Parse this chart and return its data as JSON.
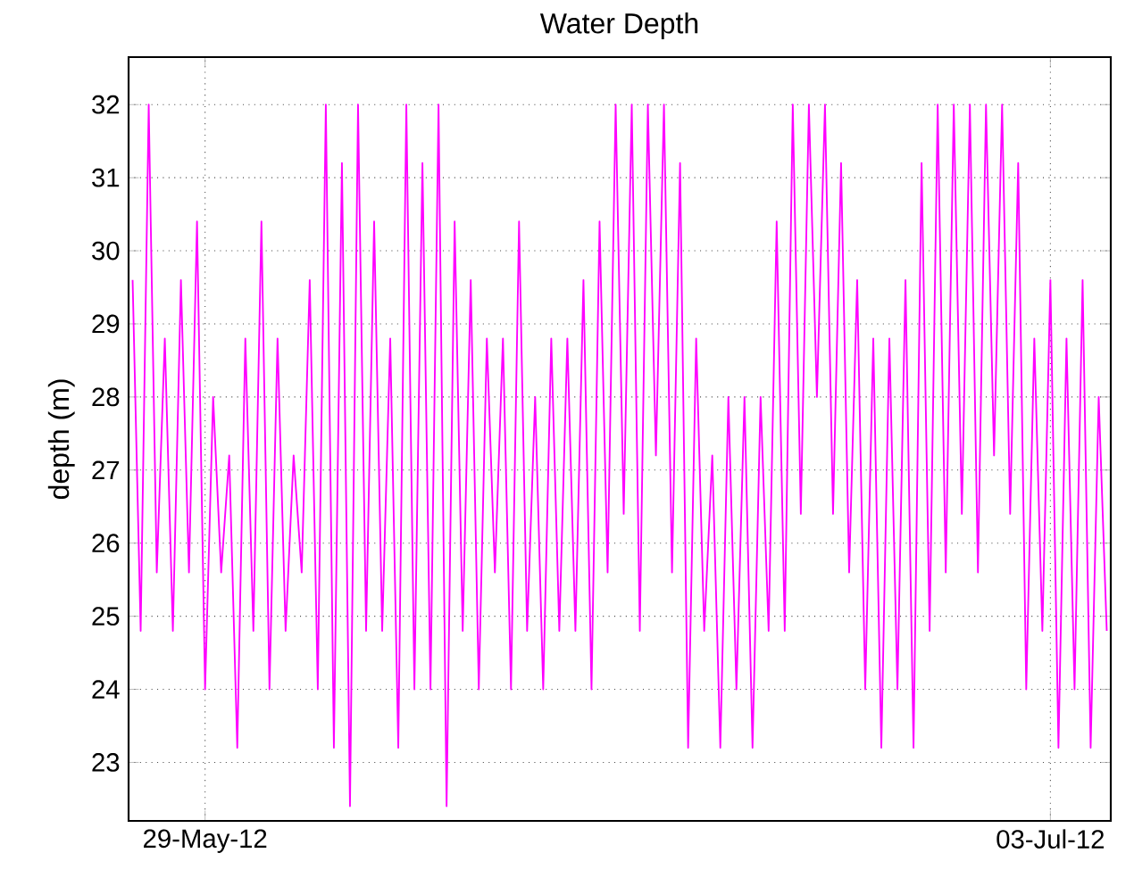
{
  "chart_data": {
    "type": "line",
    "title": "Water Depth",
    "ylabel": "depth (m)",
    "color": "#ff00ff",
    "x": [
      "2012-05-26T00:00",
      "2012-05-26T08:00",
      "2012-05-26T16:00",
      "2012-05-27T00:00",
      "2012-05-27T08:00",
      "2012-05-27T16:00",
      "2012-05-28T00:00",
      "2012-05-28T08:00",
      "2012-05-28T16:00",
      "2012-05-29T00:00",
      "2012-05-29T08:00",
      "2012-05-29T16:00",
      "2012-05-30T00:00",
      "2012-05-30T08:00",
      "2012-05-30T16:00",
      "2012-05-31T00:00",
      "2012-05-31T08:00",
      "2012-05-31T16:00",
      "2012-06-01T00:00",
      "2012-06-01T08:00",
      "2012-06-01T16:00",
      "2012-06-02T00:00",
      "2012-06-02T08:00",
      "2012-06-02T16:00",
      "2012-06-03T00:00",
      "2012-06-03T08:00",
      "2012-06-03T16:00",
      "2012-06-04T00:00",
      "2012-06-04T08:00",
      "2012-06-04T16:00",
      "2012-06-05T00:00",
      "2012-06-05T08:00",
      "2012-06-05T16:00",
      "2012-06-06T00:00",
      "2012-06-06T08:00",
      "2012-06-06T16:00",
      "2012-06-07T00:00",
      "2012-06-07T08:00",
      "2012-06-07T16:00",
      "2012-06-08T00:00",
      "2012-06-08T08:00",
      "2012-06-08T16:00",
      "2012-06-09T00:00",
      "2012-06-09T08:00",
      "2012-06-09T16:00",
      "2012-06-10T00:00",
      "2012-06-10T08:00",
      "2012-06-10T16:00",
      "2012-06-11T00:00",
      "2012-06-11T08:00",
      "2012-06-11T16:00",
      "2012-06-12T00:00",
      "2012-06-12T08:00",
      "2012-06-12T16:00",
      "2012-06-13T00:00",
      "2012-06-13T08:00",
      "2012-06-13T16:00",
      "2012-06-14T00:00",
      "2012-06-14T08:00",
      "2012-06-14T16:00",
      "2012-06-15T00:00",
      "2012-06-15T08:00",
      "2012-06-15T16:00",
      "2012-06-16T00:00",
      "2012-06-16T08:00",
      "2012-06-16T16:00",
      "2012-06-17T00:00",
      "2012-06-17T08:00",
      "2012-06-17T16:00",
      "2012-06-18T00:00",
      "2012-06-18T08:00",
      "2012-06-18T16:00",
      "2012-06-19T00:00",
      "2012-06-19T08:00",
      "2012-06-19T16:00",
      "2012-06-20T00:00",
      "2012-06-20T08:00",
      "2012-06-20T16:00",
      "2012-06-21T00:00",
      "2012-06-21T08:00",
      "2012-06-21T16:00",
      "2012-06-22T00:00",
      "2012-06-22T08:00",
      "2012-06-22T16:00",
      "2012-06-23T00:00",
      "2012-06-23T08:00",
      "2012-06-23T16:00",
      "2012-06-24T00:00",
      "2012-06-24T08:00",
      "2012-06-24T16:00",
      "2012-06-25T00:00",
      "2012-06-25T08:00",
      "2012-06-25T16:00",
      "2012-06-26T00:00",
      "2012-06-26T08:00",
      "2012-06-26T16:00",
      "2012-06-27T00:00",
      "2012-06-27T08:00",
      "2012-06-27T16:00",
      "2012-06-28T00:00",
      "2012-06-28T08:00",
      "2012-06-28T16:00",
      "2012-06-29T00:00",
      "2012-06-29T08:00",
      "2012-06-29T16:00",
      "2012-06-30T00:00",
      "2012-06-30T08:00",
      "2012-06-30T16:00",
      "2012-07-01T00:00",
      "2012-07-01T08:00",
      "2012-07-01T16:00",
      "2012-07-02T00:00",
      "2012-07-02T08:00",
      "2012-07-02T16:00",
      "2012-07-03T00:00",
      "2012-07-03T08:00",
      "2012-07-03T16:00",
      "2012-07-04T00:00",
      "2012-07-04T08:00",
      "2012-07-04T16:00",
      "2012-07-05T00:00",
      "2012-07-05T08:00"
    ],
    "values": [
      29.6,
      24.8,
      32.0,
      25.6,
      28.8,
      24.8,
      29.6,
      25.6,
      30.4,
      24.0,
      28.0,
      25.6,
      27.2,
      23.2,
      28.8,
      24.8,
      30.4,
      24.0,
      28.8,
      24.8,
      27.2,
      25.6,
      29.6,
      24.0,
      32.0,
      23.2,
      31.2,
      22.4,
      32.0,
      24.8,
      30.4,
      24.8,
      28.8,
      23.2,
      32.0,
      24.0,
      31.2,
      24.0,
      32.0,
      22.4,
      30.4,
      24.8,
      29.6,
      24.0,
      28.8,
      25.6,
      28.8,
      24.0,
      30.4,
      24.8,
      28.0,
      24.0,
      28.8,
      24.8,
      28.8,
      24.8,
      29.6,
      24.0,
      30.4,
      25.6,
      32.0,
      26.4,
      32.0,
      24.8,
      32.0,
      27.2,
      32.0,
      25.6,
      31.2,
      23.2,
      28.8,
      24.8,
      27.2,
      23.2,
      28.0,
      24.0,
      28.0,
      23.2,
      28.0,
      24.8,
      30.4,
      24.8,
      32.0,
      26.4,
      32.0,
      28.0,
      32.0,
      26.4,
      31.2,
      25.6,
      29.6,
      24.0,
      28.8,
      23.2,
      28.8,
      24.0,
      29.6,
      23.2,
      31.2,
      24.8,
      32.0,
      25.6,
      32.0,
      26.4,
      32.0,
      25.6,
      32.0,
      27.2,
      32.0,
      26.4,
      31.2,
      24.0,
      28.8,
      24.8,
      29.6,
      23.2,
      28.8,
      24.0,
      29.6,
      23.2,
      28.0,
      24.8
    ],
    "xlim": [
      "2012-05-25T20:00",
      "2012-07-05T12:00"
    ],
    "xticks": [
      {
        "value": "2012-05-29",
        "label": "29-May-12"
      },
      {
        "value": "2012-07-03",
        "label": "03-Jul-12"
      }
    ],
    "ylim": [
      22.2,
      32.65
    ],
    "yticks": [
      23,
      24,
      25,
      26,
      27,
      28,
      29,
      30,
      31,
      32
    ],
    "grid": true,
    "marker": "none",
    "line_style": "solid"
  }
}
